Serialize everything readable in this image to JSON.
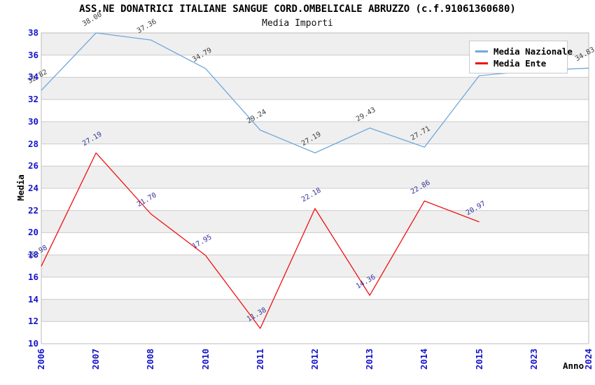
{
  "header": {
    "title": "ASS.NE DONATRICI ITALIANE SANGUE CORD.OMBELICALE ABRUZZO (c.f.91061360680)",
    "subtitle": "Media Importi"
  },
  "chart_data": {
    "type": "line",
    "title": "ASS.NE DONATRICI ITALIANE SANGUE CORD.OMBELICALE ABRUZZO (c.f.91061360680)",
    "subtitle": "Media Importi",
    "xlabel": "Anno",
    "ylabel": "Media",
    "ylim": [
      10,
      38
    ],
    "ytick_step": 2,
    "grid": "horizontal-bands",
    "legend_position": "top-right",
    "band_color": "#EFEFEF",
    "gridline_color": "#CCCCCC",
    "border_color": "#BBBBBB",
    "tick_color": "#1414CC",
    "categories": [
      "2006",
      "2007",
      "2008",
      "2010",
      "2011",
      "2012",
      "2013",
      "2014",
      "2015",
      "2023",
      "2024"
    ],
    "series": [
      {
        "name": "Media Nazionale",
        "color": "#6FA8DC",
        "label_color": "#3C3C3C",
        "values": [
          32.82,
          38.0,
          37.36,
          34.79,
          29.24,
          27.19,
          29.43,
          27.71,
          34.15,
          34.6,
          34.83
        ],
        "point_labels": [
          "32.82",
          "38.00",
          "37.36",
          "34.79",
          "29.24",
          "27.19",
          "29.43",
          "27.71",
          null,
          null,
          "34.83"
        ]
      },
      {
        "name": "Media Ente",
        "color": "#EE1111",
        "label_color": "#333399",
        "values": [
          16.98,
          27.19,
          21.7,
          17.95,
          11.38,
          22.18,
          14.36,
          22.86,
          20.97,
          null,
          null
        ],
        "point_labels": [
          "16.98",
          "27.19",
          "21.70",
          "17.95",
          "11.38",
          "22.18",
          "14.36",
          "22.86",
          "20.97",
          null,
          null
        ]
      }
    ]
  }
}
